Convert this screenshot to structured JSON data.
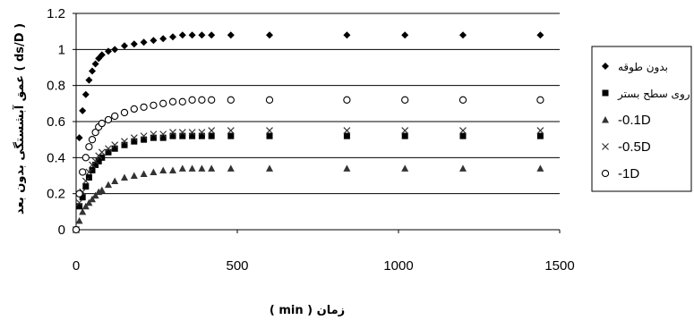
{
  "chart_data": {
    "type": "scatter",
    "title": "",
    "xlabel": "( min ) زمان",
    "ylabel": "عمق آبشستگی بدون بعد ( ds/D )",
    "xlim": [
      0,
      1500
    ],
    "ylim": [
      0,
      1.2
    ],
    "x_ticks": [
      0,
      500,
      1000,
      1500
    ],
    "y_ticks": [
      0,
      0.2,
      0.4,
      0.6,
      0.8,
      1,
      1.2
    ],
    "x_tick_labels": [
      "0",
      "500",
      "1000",
      "1500"
    ],
    "y_tick_labels": [
      "0",
      "0.2",
      "0.4",
      "0.6",
      "0.8",
      "1",
      "1.2"
    ],
    "grid": "horizontal",
    "legend_position": "right",
    "series": [
      {
        "name": "بدون طوقه",
        "marker": "diamond",
        "color": "#000000",
        "points": [
          [
            0,
            0
          ],
          [
            10,
            0.51
          ],
          [
            20,
            0.66
          ],
          [
            30,
            0.75
          ],
          [
            40,
            0.83
          ],
          [
            50,
            0.88
          ],
          [
            60,
            0.92
          ],
          [
            70,
            0.95
          ],
          [
            80,
            0.97
          ],
          [
            100,
            0.99
          ],
          [
            120,
            1.0
          ],
          [
            150,
            1.02
          ],
          [
            180,
            1.03
          ],
          [
            210,
            1.04
          ],
          [
            240,
            1.05
          ],
          [
            270,
            1.06
          ],
          [
            300,
            1.07
          ],
          [
            330,
            1.08
          ],
          [
            360,
            1.08
          ],
          [
            390,
            1.08
          ],
          [
            420,
            1.08
          ],
          [
            480,
            1.08
          ],
          [
            600,
            1.08
          ],
          [
            840,
            1.08
          ],
          [
            1020,
            1.08
          ],
          [
            1200,
            1.08
          ],
          [
            1440,
            1.08
          ]
        ]
      },
      {
        "name": "روی سطح بستر",
        "marker": "square",
        "color": "#000000",
        "points": [
          [
            0,
            0
          ],
          [
            10,
            0.13
          ],
          [
            20,
            0.18
          ],
          [
            30,
            0.24
          ],
          [
            40,
            0.29
          ],
          [
            50,
            0.33
          ],
          [
            60,
            0.36
          ],
          [
            70,
            0.38
          ],
          [
            80,
            0.4
          ],
          [
            100,
            0.43
          ],
          [
            120,
            0.45
          ],
          [
            150,
            0.47
          ],
          [
            180,
            0.49
          ],
          [
            210,
            0.5
          ],
          [
            240,
            0.51
          ],
          [
            270,
            0.51
          ],
          [
            300,
            0.52
          ],
          [
            330,
            0.52
          ],
          [
            360,
            0.52
          ],
          [
            390,
            0.52
          ],
          [
            420,
            0.52
          ],
          [
            480,
            0.52
          ],
          [
            600,
            0.52
          ],
          [
            840,
            0.52
          ],
          [
            1020,
            0.52
          ],
          [
            1200,
            0.52
          ],
          [
            1440,
            0.52
          ]
        ]
      },
      {
        "name": "-0.1D",
        "marker": "triangle",
        "color": "#333333",
        "points": [
          [
            0,
            0
          ],
          [
            10,
            0.05
          ],
          [
            20,
            0.1
          ],
          [
            30,
            0.13
          ],
          [
            40,
            0.15
          ],
          [
            50,
            0.17
          ],
          [
            60,
            0.19
          ],
          [
            70,
            0.21
          ],
          [
            80,
            0.22
          ],
          [
            100,
            0.25
          ],
          [
            120,
            0.27
          ],
          [
            150,
            0.29
          ],
          [
            180,
            0.3
          ],
          [
            210,
            0.31
          ],
          [
            240,
            0.32
          ],
          [
            270,
            0.33
          ],
          [
            300,
            0.33
          ],
          [
            330,
            0.34
          ],
          [
            360,
            0.34
          ],
          [
            390,
            0.34
          ],
          [
            420,
            0.34
          ],
          [
            480,
            0.34
          ],
          [
            600,
            0.34
          ],
          [
            840,
            0.34
          ],
          [
            1020,
            0.34
          ],
          [
            1200,
            0.34
          ],
          [
            1440,
            0.34
          ]
        ]
      },
      {
        "name": "-0.5D",
        "marker": "x",
        "color": "#333333",
        "points": [
          [
            0,
            0
          ],
          [
            10,
            0.15
          ],
          [
            20,
            0.21
          ],
          [
            30,
            0.27
          ],
          [
            40,
            0.32
          ],
          [
            50,
            0.36
          ],
          [
            60,
            0.38
          ],
          [
            70,
            0.41
          ],
          [
            80,
            0.43
          ],
          [
            100,
            0.45
          ],
          [
            120,
            0.47
          ],
          [
            150,
            0.49
          ],
          [
            180,
            0.51
          ],
          [
            210,
            0.52
          ],
          [
            240,
            0.53
          ],
          [
            270,
            0.53
          ],
          [
            300,
            0.54
          ],
          [
            330,
            0.54
          ],
          [
            360,
            0.54
          ],
          [
            390,
            0.54
          ],
          [
            420,
            0.55
          ],
          [
            480,
            0.55
          ],
          [
            600,
            0.55
          ],
          [
            840,
            0.55
          ],
          [
            1020,
            0.55
          ],
          [
            1200,
            0.55
          ],
          [
            1440,
            0.55
          ]
        ]
      },
      {
        "name": "-1D",
        "marker": "circle",
        "color": "#000000",
        "points": [
          [
            0,
            0
          ],
          [
            10,
            0.2
          ],
          [
            20,
            0.32
          ],
          [
            30,
            0.4
          ],
          [
            40,
            0.46
          ],
          [
            50,
            0.5
          ],
          [
            60,
            0.54
          ],
          [
            70,
            0.57
          ],
          [
            80,
            0.59
          ],
          [
            100,
            0.61
          ],
          [
            120,
            0.63
          ],
          [
            150,
            0.65
          ],
          [
            180,
            0.67
          ],
          [
            210,
            0.68
          ],
          [
            240,
            0.69
          ],
          [
            270,
            0.7
          ],
          [
            300,
            0.71
          ],
          [
            330,
            0.71
          ],
          [
            360,
            0.72
          ],
          [
            390,
            0.72
          ],
          [
            420,
            0.72
          ],
          [
            480,
            0.72
          ],
          [
            600,
            0.72
          ],
          [
            840,
            0.72
          ],
          [
            1020,
            0.72
          ],
          [
            1200,
            0.72
          ],
          [
            1440,
            0.72
          ]
        ]
      }
    ]
  }
}
